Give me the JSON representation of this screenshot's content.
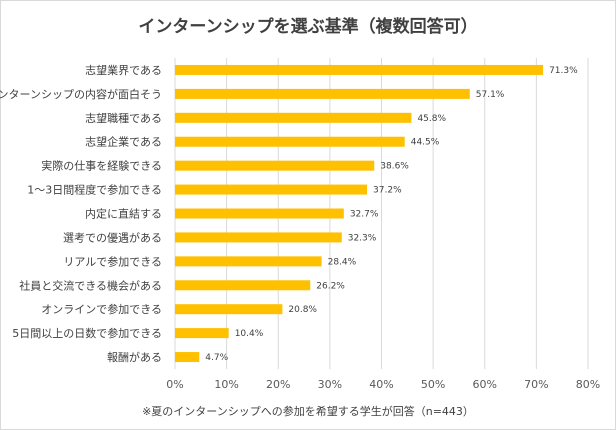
{
  "chart_data": {
    "type": "bar",
    "orientation": "horizontal",
    "title": "インターンシップを選ぶ基準（複数回答可）",
    "note": "※夏のインターンシップへの参加を希望する学生が回答（n=443）",
    "categories": [
      "志望業界である",
      "インターンシップの内容が面白そう",
      "志望職種である",
      "志望企業である",
      "実際の仕事を経験できる",
      "1～3日間程度で参加できる",
      "内定に直結する",
      "選考での優遇がある",
      "リアルで参加できる",
      "社員と交流できる機会がある",
      "オンラインで参加できる",
      "5日間以上の日数で参加できる",
      "報酬がある"
    ],
    "values": [
      71.3,
      57.1,
      45.8,
      44.5,
      38.6,
      37.2,
      32.7,
      32.3,
      28.4,
      26.2,
      20.8,
      10.4,
      4.7
    ],
    "value_labels": [
      "71.3%",
      "57.1%",
      "45.8%",
      "44.5%",
      "38.6%",
      "37.2%",
      "32.7%",
      "32.3%",
      "28.4%",
      "26.2%",
      "20.8%",
      "10.4%",
      "4.7%"
    ],
    "xticks": [
      "0%",
      "10%",
      "20%",
      "30%",
      "40%",
      "50%",
      "60%",
      "70%",
      "80%"
    ],
    "xlim": [
      0,
      80
    ],
    "grid": true,
    "bar_color": "#ffc000"
  }
}
